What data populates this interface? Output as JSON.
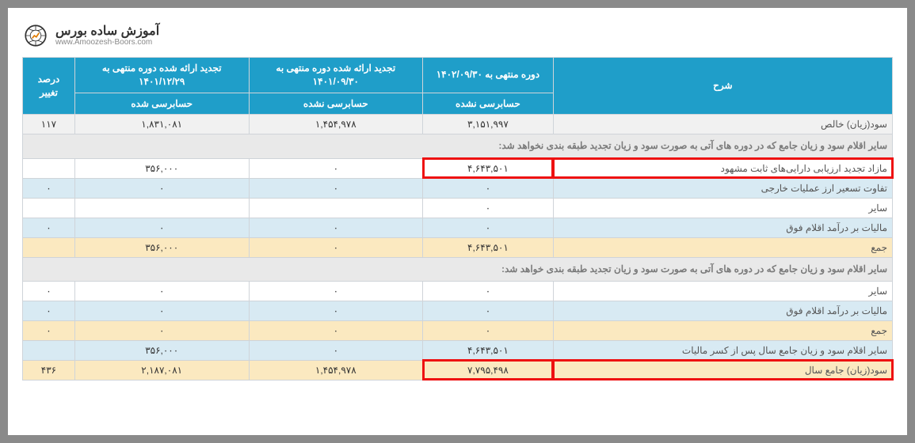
{
  "logo": {
    "title": "آموزش ساده بورس",
    "subtitle": "www.Amoozesh-Boors.com"
  },
  "table": {
    "headers": {
      "desc": "شرح",
      "period": "دوره منتهی به ۱۴۰۲/۰۹/۳۰",
      "restated1": "تجدید ارائه شده دوره منتهی به ۱۴۰۱/۰۹/۳۰",
      "restated2": "تجدید ارائه شده دوره منتهی به ۱۴۰۱/۱۲/۲۹",
      "pct": "درصد تغییر",
      "sub_period": "حسابرسی نشده",
      "sub_r1": "حسابرسی نشده",
      "sub_r2": "حسابرسی شده"
    },
    "rows": [
      {
        "type": "grey",
        "desc": "سود(زیان) خالص",
        "period": "۳,۱۵۱,۹۹۷",
        "r1": "۱,۴۵۴,۹۷۸",
        "r2": "۱,۸۳۱,۰۸۱",
        "pct": "۱۱۷"
      },
      {
        "type": "section",
        "desc": "سایر اقلام سود و زیان جامع که در دوره های آتی به صورت سود و زیان تجدید طبقه بندی نخواهد شد:"
      },
      {
        "type": "plain",
        "desc": "مازاد تجدید ارزیابی دارایی‌های ثابت مشهود",
        "period": "۴,۶۴۳,۵۰۱",
        "r1": "۰",
        "r2": "۳۵۶,۰۰۰",
        "pct": "",
        "hl": [
          "desc",
          "period"
        ]
      },
      {
        "type": "blue",
        "desc": "تفاوت تسعیر ارز عملیات خارجی",
        "period": "۰",
        "r1": "۰",
        "r2": "۰",
        "pct": "۰"
      },
      {
        "type": "plain",
        "desc": "سایر",
        "period": "۰",
        "r1": "",
        "r2": "",
        "pct": ""
      },
      {
        "type": "blue",
        "desc": "مالیات بر درآمد اقلام فوق",
        "period": "۰",
        "r1": "۰",
        "r2": "۰",
        "pct": "۰"
      },
      {
        "type": "yellow",
        "desc": "جمع",
        "period": "۴,۶۴۳,۵۰۱",
        "r1": "۰",
        "r2": "۳۵۶,۰۰۰",
        "pct": ""
      },
      {
        "type": "section",
        "desc": "سایر اقلام سود و زیان جامع که در دوره های آتی به صورت سود و زیان تجدید طبقه بندی خواهد شد:"
      },
      {
        "type": "plain",
        "desc": "سایر",
        "period": "۰",
        "r1": "۰",
        "r2": "۰",
        "pct": "۰"
      },
      {
        "type": "blue",
        "desc": "مالیات بر درآمد اقلام فوق",
        "period": "۰",
        "r1": "۰",
        "r2": "۰",
        "pct": "۰"
      },
      {
        "type": "yellow",
        "desc": "جمع",
        "period": "۰",
        "r1": "۰",
        "r2": "۰",
        "pct": "۰"
      },
      {
        "type": "blue",
        "desc": "سایر اقلام سود و زیان جامع سال پس از کسر مالیات",
        "period": "۴,۶۴۳,۵۰۱",
        "r1": "۰",
        "r2": "۳۵۶,۰۰۰",
        "pct": ""
      },
      {
        "type": "yellow",
        "desc": "سود(زیان) جامع سال",
        "period": "۷,۷۹۵,۴۹۸",
        "r1": "۱,۴۵۴,۹۷۸",
        "r2": "۲,۱۸۷,۰۸۱",
        "pct": "۴۳۶",
        "hl": [
          "desc",
          "period"
        ]
      }
    ]
  },
  "colors": {
    "header_bg": "#1f9ec9",
    "grey_bg": "#f1f1f1",
    "blue_bg": "#d8eaf3",
    "yellow_bg": "#fbe9c0",
    "section_bg": "#e9e9e9",
    "border": "#cfd4d9",
    "highlight": "#e11"
  }
}
